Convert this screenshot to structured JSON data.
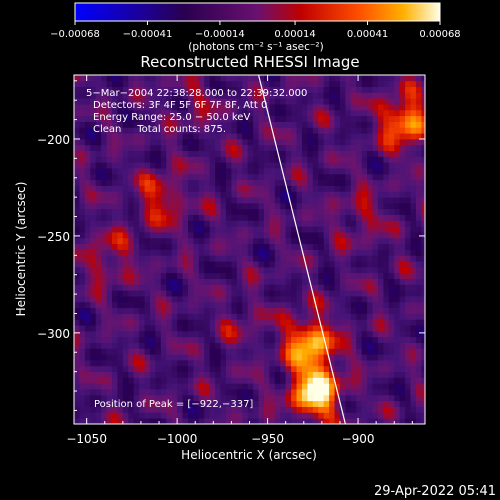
{
  "chart_data": {
    "type": "heatmap",
    "title": "Reconstructed RHESSI Image",
    "xlabel": "Heliocentric X (arcsec)",
    "ylabel": "Heliocentric Y (arcsec)",
    "xlim": [
      -1057,
      -863
    ],
    "ylim": [
      -347,
      -167
    ],
    "x_ticks": [
      -1050,
      -1000,
      -950,
      -900
    ],
    "x_tick_labels": [
      "−1050",
      "−1000",
      "−950",
      "−900"
    ],
    "y_ticks": [
      -200,
      -250,
      -300
    ],
    "y_tick_labels": [
      "−200",
      "−250",
      "−300"
    ],
    "colorbar": {
      "range": [
        -0.00068,
        0.00068
      ],
      "tick_values": [
        -0.00068,
        -0.00041,
        -0.00014,
        0.00014,
        0.00041,
        0.00068
      ],
      "tick_labels": [
        "−0.00068",
        "−0.00041",
        "−0.00014",
        "0.00014",
        "0.00041",
        "0.00068"
      ],
      "units_label": "(photons cm⁻² s⁻¹ asec⁻²)",
      "colors": [
        "#0000ff",
        "#1a00a0",
        "#3a0a60",
        "#5a1a9a",
        "#aa0000",
        "#ff4400",
        "#ffaa00",
        "#ffffe0"
      ]
    },
    "annotations": [
      "5−Mar−2004 22:38:28.000 to 22:39:32.000",
      "Detectors: 3F 4F 5F 6F 7F 8F, Att 0",
      "Energy Range: 25.0 − 50.0 keV",
      "Clean     Total counts: 875.",
      "Position of Peak = [−922,−337]"
    ],
    "peak": {
      "x": -922,
      "y": -337
    },
    "bright_regions": [
      {
        "x": -928,
        "y": -307,
        "intensity": 0.9
      },
      {
        "x": -925,
        "y": -332,
        "intensity": 1.0
      },
      {
        "x": -875,
        "y": -192,
        "intensity": 0.85
      },
      {
        "x": -1040,
        "y": -262,
        "intensity": 0.6
      },
      {
        "x": -1010,
        "y": -232,
        "intensity": 0.65
      },
      {
        "x": -990,
        "y": -183,
        "intensity": 0.5
      },
      {
        "x": -900,
        "y": -242,
        "intensity": 0.55
      },
      {
        "x": -965,
        "y": -297,
        "intensity": 0.5
      }
    ],
    "limb_line": {
      "x_top": -955,
      "y_top": -167,
      "x_bottom": -907,
      "y_bottom": -347
    }
  },
  "footer": {
    "timestamp": "29-Apr-2022 05:41"
  }
}
